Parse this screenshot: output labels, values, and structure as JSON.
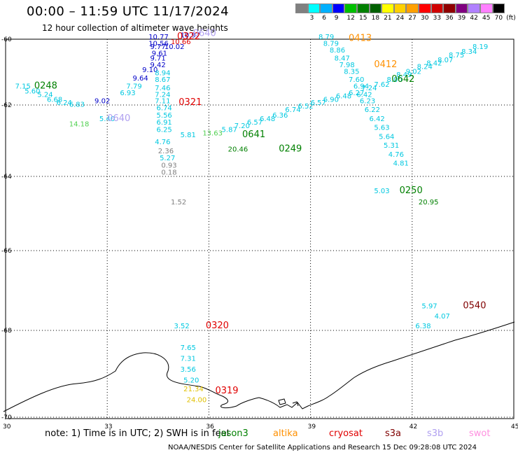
{
  "header": {
    "title": "00:00 – 11:59 UTC 11/17/2024",
    "subtitle": "12 hour collection of altimeter wave heights"
  },
  "legend": {
    "unit_label": "(ft)",
    "bins": [
      {
        "label": "",
        "color": "#808080"
      },
      {
        "label": "3",
        "color": "#00ffff"
      },
      {
        "label": "6",
        "color": "#00b0ff"
      },
      {
        "label": "9",
        "color": "#0000ff"
      },
      {
        "label": "12",
        "color": "#00c000"
      },
      {
        "label": "15",
        "color": "#008000"
      },
      {
        "label": "18",
        "color": "#006000"
      },
      {
        "label": "21",
        "color": "#ffff00"
      },
      {
        "label": "24",
        "color": "#ffd000"
      },
      {
        "label": "27",
        "color": "#ffa000"
      },
      {
        "label": "30",
        "color": "#ff0000"
      },
      {
        "label": "33",
        "color": "#d00000"
      },
      {
        "label": "36",
        "color": "#900000"
      },
      {
        "label": "39",
        "color": "#800080"
      },
      {
        "label": "42",
        "color": "#b080ff"
      },
      {
        "label": "45",
        "color": "#ff80ff"
      },
      {
        "label": "70",
        "color": "#000000"
      }
    ]
  },
  "axes": {
    "lon_ticks": [
      "30",
      "33",
      "36",
      "39",
      "42",
      "45"
    ],
    "lat_ticks": [
      "-60",
      "-62",
      "-64",
      "-66",
      "-68",
      "-70"
    ]
  },
  "colors": {
    "cyan": "#00c8e0",
    "blue": "#0000c8",
    "green": "#008000",
    "lightgreen": "#50d050",
    "gray": "#808080",
    "red": "#e00000",
    "orange": "#ff9000",
    "lavender": "#b0a0f0",
    "darkred": "#800000",
    "yellow": "#e0c000",
    "black": "#000000"
  },
  "observations": [
    {
      "v": "10.77",
      "lon": 32.5,
      "lat": -60.0,
      "c": "blue"
    },
    {
      "v": "10.97",
      "lon": 33.5,
      "lat": -59.95,
      "c": "blue"
    },
    {
      "v": "10.56",
      "lon": 32.5,
      "lat": -60.2,
      "c": "blue"
    },
    {
      "v": "10.66",
      "lon": 33.2,
      "lat": -60.15,
      "c": "red"
    },
    {
      "v": "9.77",
      "lon": 32.55,
      "lat": -60.3,
      "c": "blue"
    },
    {
      "v": "10.02",
      "lon": 33.0,
      "lat": -60.3,
      "c": "blue"
    },
    {
      "v": "9.61",
      "lon": 32.6,
      "lat": -60.5,
      "c": "blue"
    },
    {
      "v": "9.71",
      "lon": 32.55,
      "lat": -60.65,
      "c": "blue"
    },
    {
      "v": "9.42",
      "lon": 32.55,
      "lat": -60.85,
      "c": "blue"
    },
    {
      "v": "9.10",
      "lon": 32.3,
      "lat": -61.0,
      "c": "blue"
    },
    {
      "v": "8.94",
      "lon": 32.7,
      "lat": -61.1,
      "c": "cyan"
    },
    {
      "v": "9.64",
      "lon": 32.0,
      "lat": -61.25,
      "c": "blue"
    },
    {
      "v": "8.67",
      "lon": 32.7,
      "lat": -61.3,
      "c": "cyan"
    },
    {
      "v": "7.79",
      "lon": 31.8,
      "lat": -61.5,
      "c": "cyan"
    },
    {
      "v": "7.46",
      "lon": 32.7,
      "lat": -61.55,
      "c": "cyan"
    },
    {
      "v": "6.93",
      "lon": 31.6,
      "lat": -61.7,
      "c": "cyan"
    },
    {
      "v": "7.24",
      "lon": 32.7,
      "lat": -61.75,
      "c": "cyan"
    },
    {
      "v": "9.02",
      "lon": 30.8,
      "lat": -61.95,
      "c": "blue"
    },
    {
      "v": "7.11",
      "lon": 32.7,
      "lat": -61.95,
      "c": "cyan"
    },
    {
      "v": "6.74",
      "lon": 32.75,
      "lat": -62.15,
      "c": "cyan"
    },
    {
      "v": "5.56",
      "lon": 32.75,
      "lat": -62.35,
      "c": "cyan"
    },
    {
      "v": "5.40",
      "lon": 30.95,
      "lat": -62.45,
      "c": "cyan"
    },
    {
      "v": "6.91",
      "lon": 32.75,
      "lat": -62.55,
      "c": "cyan"
    },
    {
      "v": "14.18",
      "lon": 30.0,
      "lat": -62.6,
      "c": "lightgreen"
    },
    {
      "v": "6.25",
      "lon": 32.75,
      "lat": -62.75,
      "c": "cyan"
    },
    {
      "v": "5.81",
      "lon": 33.5,
      "lat": -62.9,
      "c": "cyan"
    },
    {
      "v": "4.76",
      "lon": 32.7,
      "lat": -63.1,
      "c": "cyan"
    },
    {
      "v": "2.36",
      "lon": 32.8,
      "lat": -63.35,
      "c": "gray"
    },
    {
      "v": "5.27",
      "lon": 32.85,
      "lat": -63.55,
      "c": "cyan"
    },
    {
      "v": "0.93",
      "lon": 32.9,
      "lat": -63.75,
      "c": "gray"
    },
    {
      "v": "0.18",
      "lon": 32.9,
      "lat": -63.95,
      "c": "gray"
    },
    {
      "v": "1.52",
      "lon": 33.2,
      "lat": -64.75,
      "c": "gray"
    },
    {
      "v": "7.15",
      "lon": 28.3,
      "lat": -61.5,
      "c": "cyan"
    },
    {
      "v": "5.60",
      "lon": 28.6,
      "lat": -61.65,
      "c": "cyan"
    },
    {
      "v": "5.24",
      "lon": 29.0,
      "lat": -61.75,
      "c": "cyan"
    },
    {
      "v": "6.68",
      "lon": 29.3,
      "lat": -61.9,
      "c": "cyan"
    },
    {
      "v": "6.24",
      "lon": 29.6,
      "lat": -62.0,
      "c": "cyan"
    },
    {
      "v": "6.83",
      "lon": 30.0,
      "lat": -62.05,
      "c": "cyan"
    },
    {
      "v": "13.63",
      "lon": 34.2,
      "lat": -62.85,
      "c": "lightgreen"
    },
    {
      "v": "5.87",
      "lon": 34.8,
      "lat": -62.75,
      "c": "cyan"
    },
    {
      "v": "7.20",
      "lon": 35.2,
      "lat": -62.65,
      "c": "cyan"
    },
    {
      "v": "6.57",
      "lon": 35.6,
      "lat": -62.55,
      "c": "cyan"
    },
    {
      "v": "6.48",
      "lon": 36.0,
      "lat": -62.45,
      "c": "cyan"
    },
    {
      "v": "6.36",
      "lon": 36.4,
      "lat": -62.35,
      "c": "cyan"
    },
    {
      "v": "6.74",
      "lon": 36.8,
      "lat": -62.2,
      "c": "cyan"
    },
    {
      "v": "6.52",
      "lon": 37.2,
      "lat": -62.1,
      "c": "cyan"
    },
    {
      "v": "6.57",
      "lon": 37.6,
      "lat": -62.0,
      "c": "cyan"
    },
    {
      "v": "6.90",
      "lon": 38.0,
      "lat": -61.9,
      "c": "cyan"
    },
    {
      "v": "6.48",
      "lon": 38.4,
      "lat": -61.8,
      "c": "cyan"
    },
    {
      "v": "6.27",
      "lon": 38.8,
      "lat": -61.7,
      "c": "cyan"
    },
    {
      "v": "7.24",
      "lon": 39.2,
      "lat": -61.55,
      "c": "cyan"
    },
    {
      "v": "7.62",
      "lon": 39.6,
      "lat": -61.45,
      "c": "cyan"
    },
    {
      "v": "8.00",
      "lon": 40.0,
      "lat": -61.3,
      "c": "cyan"
    },
    {
      "v": "8.49",
      "lon": 40.3,
      "lat": -61.15,
      "c": "cyan"
    },
    {
      "v": "9.02",
      "lon": 40.6,
      "lat": -61.05,
      "c": "cyan"
    },
    {
      "v": "8.24",
      "lon": 40.95,
      "lat": -60.9,
      "c": "cyan"
    },
    {
      "v": "8.42",
      "lon": 41.25,
      "lat": -60.8,
      "c": "cyan"
    },
    {
      "v": "8.07",
      "lon": 41.6,
      "lat": -60.7,
      "c": "cyan"
    },
    {
      "v": "8.75",
      "lon": 41.95,
      "lat": -60.55,
      "c": "cyan"
    },
    {
      "v": "8.34",
      "lon": 42.35,
      "lat": -60.45,
      "c": "cyan"
    },
    {
      "v": "8.19",
      "lon": 42.7,
      "lat": -60.3,
      "c": "cyan"
    },
    {
      "v": "8.79",
      "lon": 37.85,
      "lat": -60.0,
      "c": "cyan"
    },
    {
      "v": "8.79",
      "lon": 38.0,
      "lat": -60.2,
      "c": "cyan"
    },
    {
      "v": "8.86",
      "lon": 38.2,
      "lat": -60.4,
      "c": "cyan"
    },
    {
      "v": "8.47",
      "lon": 38.35,
      "lat": -60.65,
      "c": "cyan"
    },
    {
      "v": "7.98",
      "lon": 38.5,
      "lat": -60.85,
      "c": "cyan"
    },
    {
      "v": "8.35",
      "lon": 38.65,
      "lat": -61.05,
      "c": "cyan"
    },
    {
      "v": "7.60",
      "lon": 38.8,
      "lat": -61.3,
      "c": "cyan"
    },
    {
      "v": "6.94",
      "lon": 38.95,
      "lat": -61.5,
      "c": "cyan"
    },
    {
      "v": "6.42",
      "lon": 39.05,
      "lat": -61.75,
      "c": "cyan"
    },
    {
      "v": "6.23",
      "lon": 39.15,
      "lat": -61.95,
      "c": "cyan"
    },
    {
      "v": "6.22",
      "lon": 39.3,
      "lat": -62.2,
      "c": "cyan"
    },
    {
      "v": "6.42",
      "lon": 39.45,
      "lat": -62.45,
      "c": "cyan"
    },
    {
      "v": "5.63",
      "lon": 39.6,
      "lat": -62.7,
      "c": "cyan"
    },
    {
      "v": "5.64",
      "lon": 39.75,
      "lat": -62.95,
      "c": "cyan"
    },
    {
      "v": "5.31",
      "lon": 39.9,
      "lat": -63.2,
      "c": "cyan"
    },
    {
      "v": "4.76",
      "lon": 40.05,
      "lat": -63.45,
      "c": "cyan"
    },
    {
      "v": "4.81",
      "lon": 40.2,
      "lat": -63.7,
      "c": "cyan"
    },
    {
      "v": "20.46",
      "lon": 35.0,
      "lat": -63.3,
      "c": "green"
    },
    {
      "v": "5.03",
      "lon": 39.6,
      "lat": -64.45,
      "c": "cyan"
    },
    {
      "v": "20.95",
      "lon": 41.0,
      "lat": -64.75,
      "c": "green"
    },
    {
      "v": "5.97",
      "lon": 41.1,
      "lat": -67.45,
      "c": "cyan"
    },
    {
      "v": "4.07",
      "lon": 41.5,
      "lat": -67.7,
      "c": "cyan"
    },
    {
      "v": "6.38",
      "lon": 40.9,
      "lat": -67.95,
      "c": "cyan"
    },
    {
      "v": "3.52",
      "lon": 33.3,
      "lat": -67.95,
      "c": "cyan"
    },
    {
      "v": "7.65",
      "lon": 33.5,
      "lat": -68.45,
      "c": "cyan"
    },
    {
      "v": "7.31",
      "lon": 33.5,
      "lat": -68.7,
      "c": "cyan"
    },
    {
      "v": "3.56",
      "lon": 33.5,
      "lat": -68.95,
      "c": "cyan"
    },
    {
      "v": "5.20",
      "lon": 33.6,
      "lat": -69.2,
      "c": "cyan"
    },
    {
      "v": "21.34",
      "lon": 33.6,
      "lat": -69.4,
      "c": "yellow"
    },
    {
      "v": "24.00",
      "lon": 33.7,
      "lat": -69.65,
      "c": "yellow"
    }
  ],
  "passes": [
    {
      "id": "0248",
      "lon": 28.9,
      "lat": -61.5,
      "c": "green"
    },
    {
      "id": "0322",
      "lon": 33.4,
      "lat": -60.0,
      "c": "red"
    },
    {
      "id": "0640",
      "lon": 33.9,
      "lat": -59.9,
      "c": "lavender"
    },
    {
      "id": "0321",
      "lon": 33.45,
      "lat": -62.0,
      "c": "red"
    },
    {
      "id": "0641",
      "lon": 35.45,
      "lat": -62.9,
      "c": "green"
    },
    {
      "id": "0249",
      "lon": 36.6,
      "lat": -63.3,
      "c": "green"
    },
    {
      "id": "0640",
      "lon": 31.2,
      "lat": -62.45,
      "c": "lavender"
    },
    {
      "id": "0413",
      "lon": 38.8,
      "lat": -60.05,
      "c": "orange"
    },
    {
      "id": "0412",
      "lon": 39.6,
      "lat": -60.85,
      "c": "orange"
    },
    {
      "id": "0642",
      "lon": 40.15,
      "lat": -61.3,
      "c": "green"
    },
    {
      "id": "0250",
      "lon": 40.4,
      "lat": -64.45,
      "c": "green"
    },
    {
      "id": "0540",
      "lon": 42.4,
      "lat": -67.45,
      "c": "darkred"
    },
    {
      "id": "0320",
      "lon": 34.3,
      "lat": -67.95,
      "c": "red"
    },
    {
      "id": "0319",
      "lon": 34.6,
      "lat": -69.45,
      "c": "red"
    }
  ],
  "footer": {
    "note": "note:  1) Time is in UTC; 2) SWH is in feet",
    "satellites": [
      {
        "name": "jason3",
        "c": "green"
      },
      {
        "name": "altika",
        "c": "orange"
      },
      {
        "name": "cryosat",
        "c": "red"
      },
      {
        "name": "s3a",
        "c": "darkred"
      },
      {
        "name": "s3b",
        "c": "lavender"
      },
      {
        "name": "swot",
        "c": "pink"
      }
    ],
    "credit": "NOAA/NESDIS Center for Satellite Applications and Research    15 Dec 09:28:08 UTC 2024"
  }
}
